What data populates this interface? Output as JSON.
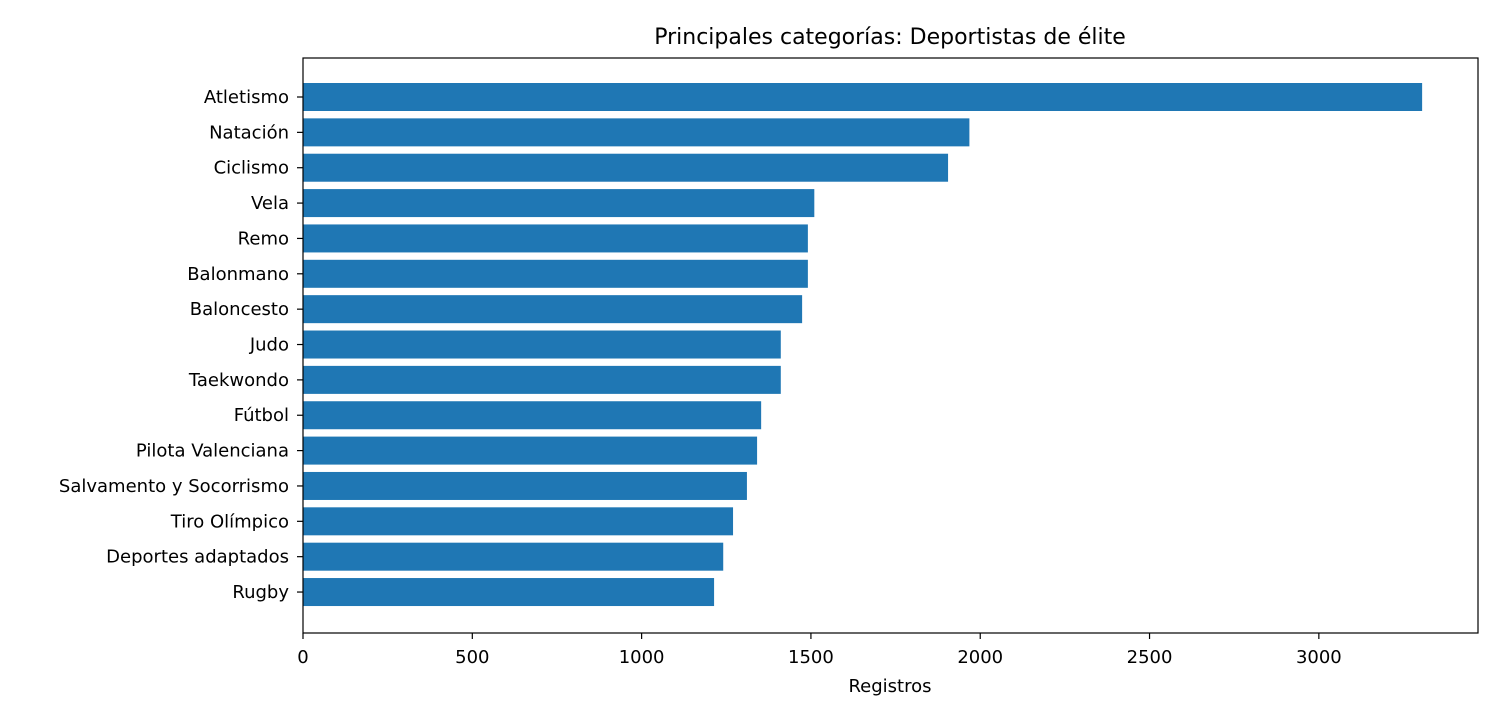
{
  "chart_data": {
    "type": "bar",
    "orientation": "horizontal",
    "title": "Principales categorías: Deportistas de élite",
    "xlabel": "Registros",
    "ylabel": "",
    "categories": [
      "Atletismo",
      "Natación",
      "Ciclismo",
      "Vela",
      "Remo",
      "Balonmano",
      "Baloncesto",
      "Judo",
      "Taekwondo",
      "Fútbol",
      "Pilota Valenciana",
      "Salvamento y Socorrismo",
      "Tiro Olímpico",
      "Deportes adaptados",
      "Rugby"
    ],
    "values": [
      3305,
      1968,
      1905,
      1510,
      1491,
      1491,
      1474,
      1411,
      1411,
      1353,
      1341,
      1311,
      1270,
      1241,
      1214
    ],
    "xlim": [
      0,
      3470
    ],
    "xticks": [
      0,
      500,
      1000,
      1500,
      2000,
      2500,
      3000
    ],
    "grid": false,
    "bar_color": "#1f77b4"
  }
}
